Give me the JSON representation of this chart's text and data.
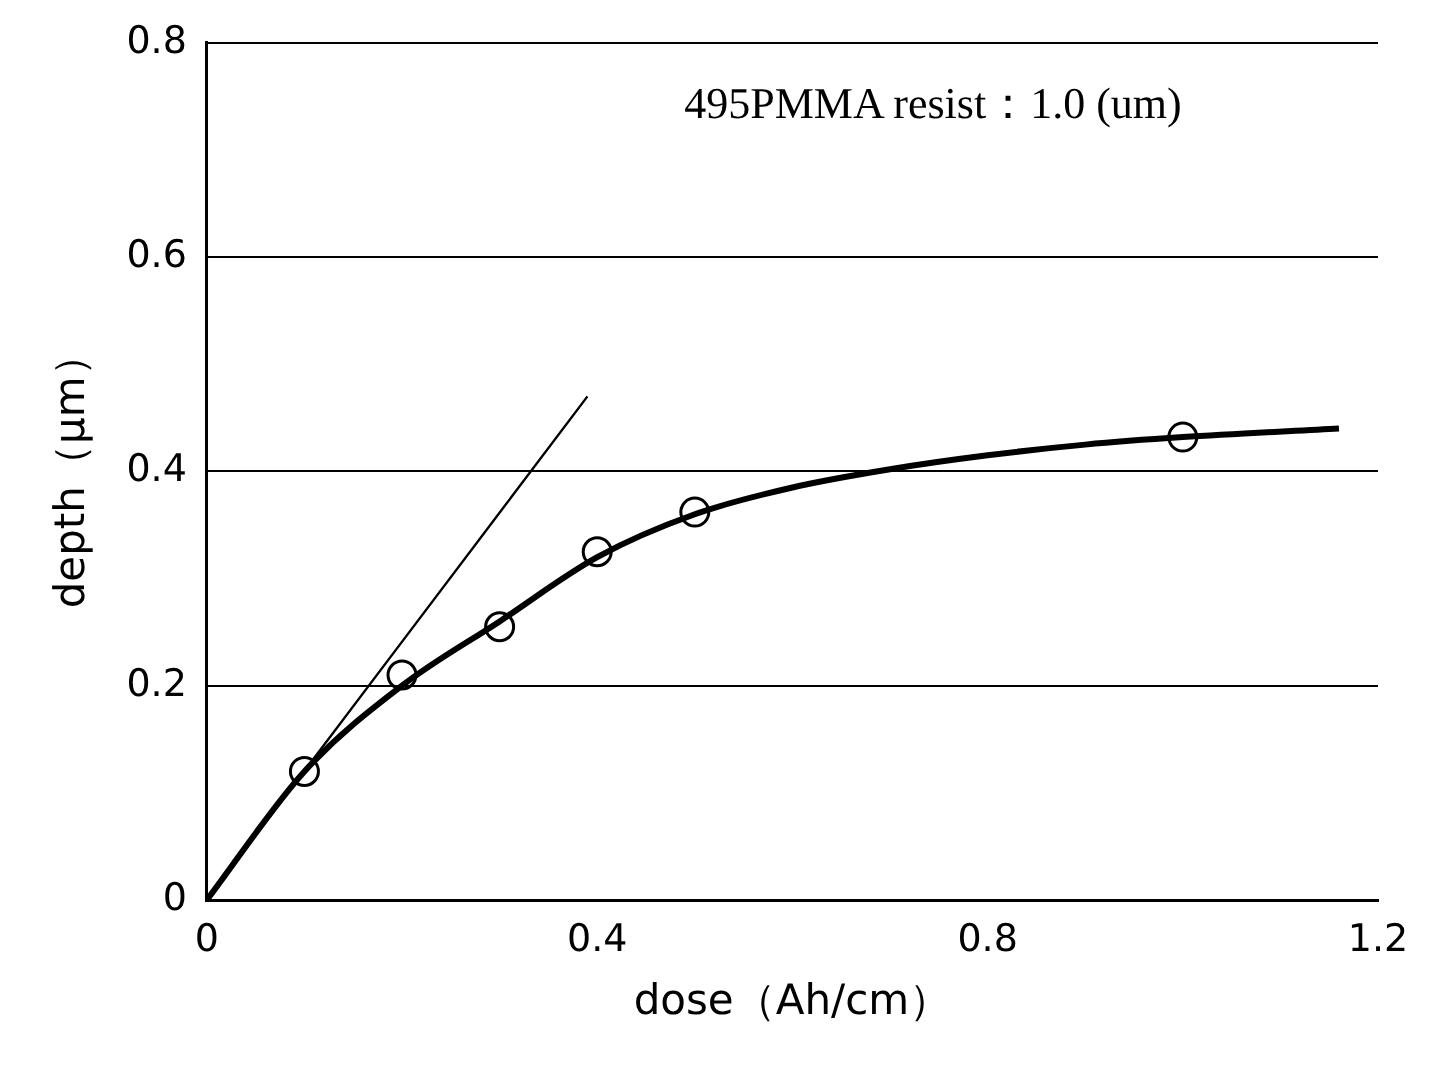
{
  "chart_data": {
    "type": "scatter",
    "xlabel": "dose（Ah/cm）",
    "ylabel": "depth（μm）",
    "xlim": [
      0,
      1.2
    ],
    "xticks": [
      0,
      0.4,
      0.8,
      1.2
    ],
    "ylim": [
      0,
      0.8
    ],
    "yticks": [
      0,
      0.2,
      0.4,
      0.6,
      0.8
    ],
    "grid": "y",
    "legend": false,
    "annotations": [
      "495PMMA resist：1.0 (um)"
    ],
    "series": [
      {
        "type": "line",
        "color": "#000000",
        "marker": "none",
        "x": [
          0,
          0.1,
          0.2,
          0.3,
          0.4,
          0.5,
          0.6,
          0.7,
          0.8,
          0.9,
          1.0,
          1.16
        ],
        "values": [
          0,
          0.12,
          0.2,
          0.26,
          0.32,
          0.36,
          0.385,
          0.402,
          0.415,
          0.425,
          0.432,
          0.44
        ]
      },
      {
        "type": "line",
        "color": "#000000",
        "marker": "none",
        "x": [
          0,
          0.39
        ],
        "values": [
          0,
          0.47
        ]
      },
      {
        "color": "#000000",
        "marker": "circle",
        "x": [
          0.1,
          0.2,
          0.3,
          0.4,
          0.5,
          1.0
        ],
        "values": [
          0.12,
          0.21,
          0.255,
          0.325,
          0.362,
          0.432
        ]
      }
    ]
  }
}
